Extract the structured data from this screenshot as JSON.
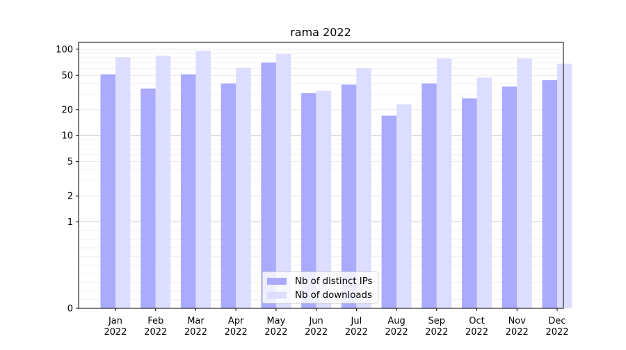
{
  "chart_data": {
    "type": "bar",
    "title": "rama 2022",
    "xlabel": "",
    "ylabel": "",
    "yscale": "symlog",
    "ylim": [
      0,
      120
    ],
    "y_ticks": [
      0,
      1,
      2,
      5,
      10,
      20,
      50,
      100
    ],
    "y_tick_labels": [
      "0",
      "1",
      "2",
      "5",
      "10",
      "20",
      "50",
      "100"
    ],
    "categories": [
      "Jan\n2022",
      "Feb\n2022",
      "Mar\n2022",
      "Apr\n2022",
      "May\n2022",
      "Jun\n2022",
      "Jul\n2022",
      "Aug\n2022",
      "Sep\n2022",
      "Oct\n2022",
      "Nov\n2022",
      "Dec\n2022"
    ],
    "category_labels": [
      [
        "Jan",
        "2022"
      ],
      [
        "Feb",
        "2022"
      ],
      [
        "Mar",
        "2022"
      ],
      [
        "Apr",
        "2022"
      ],
      [
        "May",
        "2022"
      ],
      [
        "Jun",
        "2022"
      ],
      [
        "Jul",
        "2022"
      ],
      [
        "Aug",
        "2022"
      ],
      [
        "Sep",
        "2022"
      ],
      [
        "Oct",
        "2022"
      ],
      [
        "Nov",
        "2022"
      ],
      [
        "Dec",
        "2022"
      ]
    ],
    "series": [
      {
        "name": "Nb of distinct IPs",
        "color": "#aaaaff",
        "values": [
          51,
          35,
          51,
          40,
          70,
          31,
          39,
          17,
          40,
          27,
          37,
          44
        ]
      },
      {
        "name": "Nb of downloads",
        "color": "#ddddff",
        "values": [
          81,
          84,
          96,
          61,
          88,
          33,
          60,
          23,
          78,
          47,
          78,
          68
        ]
      }
    ],
    "grid": true,
    "legend_position": "lower center"
  }
}
